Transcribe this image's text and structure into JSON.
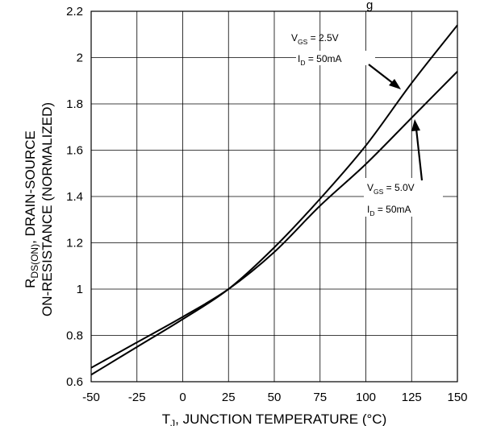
{
  "chart_data": {
    "type": "line",
    "xlabel": {
      "prefix": "T",
      "sub": "J",
      "suffix": ", JUNCTION TEMPERATURE (°C)"
    },
    "ylabel": {
      "line1": {
        "prefix": "R",
        "sub": "DS(ON)",
        "suffix": ", DRAIN-SOURCE"
      },
      "line2": "ON-RESISTANCE (NORMALIZED)"
    },
    "xlim": [
      -50,
      150
    ],
    "ylim": [
      0.6,
      2.2
    ],
    "x_ticks": [
      -50,
      -25,
      0,
      25,
      50,
      75,
      100,
      125,
      150
    ],
    "y_ticks": [
      0.6,
      0.8,
      1,
      1.2,
      1.4,
      1.6,
      1.8,
      2,
      2.2
    ],
    "y_tick_labels": [
      "0.6",
      "0.8",
      "1",
      "1.2",
      "1.4",
      "1.6",
      "1.8",
      "2",
      "2.2"
    ],
    "grid": true,
    "series": [
      {
        "x": [
          -50,
          -25,
          0,
          25,
          50,
          75,
          100,
          125,
          150
        ],
        "y": [
          0.63,
          0.75,
          0.87,
          1.0,
          1.18,
          1.39,
          1.62,
          1.89,
          2.14
        ],
        "annotation": {
          "vgs": "2.5V",
          "id": "50mA"
        }
      },
      {
        "x": [
          -50,
          -25,
          0,
          25,
          50,
          75,
          100,
          125,
          150
        ],
        "y": [
          0.66,
          0.77,
          0.88,
          1.0,
          1.16,
          1.36,
          1.54,
          1.74,
          1.94
        ],
        "annotation": {
          "vgs": "5.0V",
          "id": "50mA"
        }
      }
    ],
    "annotation_parts": {
      "v": "V",
      "gs": "GS",
      "eq": " = ",
      "i": "I",
      "d": "D"
    },
    "clipped_title_fragment": "g"
  }
}
